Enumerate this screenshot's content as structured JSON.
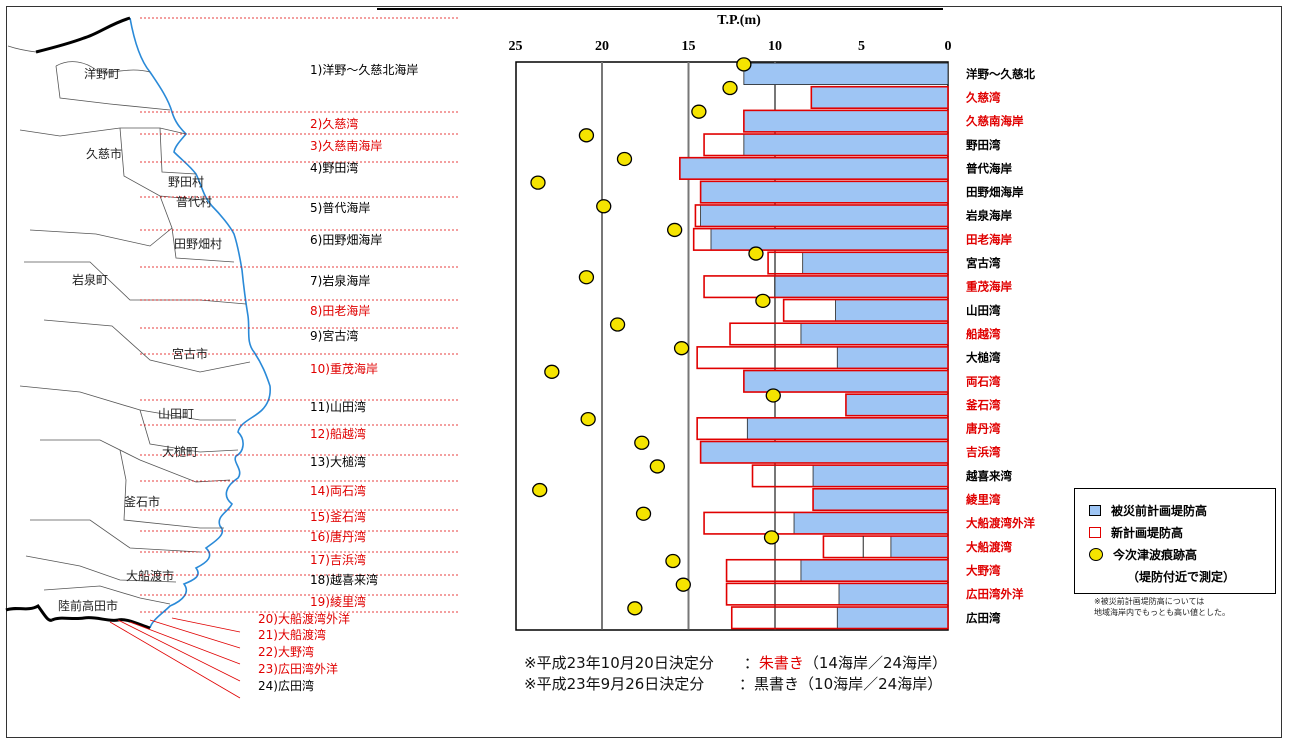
{
  "chart_data": {
    "type": "bar",
    "orientation": "horizontal",
    "xlabel": "T.P.(m)",
    "xlim": [
      25,
      0
    ],
    "xticks": [
      "25",
      "20",
      "15",
      "10",
      "5",
      "0"
    ],
    "grid_lines_at": [
      20,
      15,
      10
    ],
    "categories": [
      "洋野～久慈北",
      "久慈湾",
      "久慈南海岸",
      "野田湾",
      "普代海岸",
      "田野畑海岸",
      "岩泉海岸",
      "田老海岸",
      "宮古湾",
      "重茂海岸",
      "山田湾",
      "船越湾",
      "大槌湾",
      "両石湾",
      "釜石湾",
      "唐丹湾",
      "吉浜湾",
      "越喜来湾",
      "綾里湾",
      "大船渡湾外洋",
      "大船渡湾",
      "大野湾",
      "広田湾外洋",
      "広田湾"
    ],
    "category_colors": [
      "#000",
      "#e00000",
      "#e00000",
      "#000",
      "#000",
      "#000",
      "#000",
      "#e00000",
      "#000",
      "#e00000",
      "#000",
      "#e00000",
      "#000",
      "#e00000",
      "#e00000",
      "#e00000",
      "#e00000",
      "#000",
      "#e00000",
      "#e00000",
      "#e00000",
      "#e00000",
      "#e00000",
      "#000"
    ],
    "series": [
      {
        "name": "被災前計画堤防高",
        "values": [
          11.8,
          7.9,
          11.8,
          11.8,
          15.5,
          14.3,
          14.3,
          13.7,
          8.4,
          10.0,
          6.5,
          8.5,
          6.4,
          11.8,
          5.9,
          11.6,
          14.3,
          7.8,
          7.8,
          8.9,
          3.3,
          8.5,
          6.3,
          6.4
        ]
      },
      {
        "name": "新計画堤防高",
        "values": [
          0,
          7.9,
          11.8,
          14.1,
          15.5,
          14.3,
          14.6,
          14.7,
          10.4,
          14.1,
          9.5,
          12.6,
          14.5,
          11.8,
          5.9,
          14.5,
          14.3,
          11.3,
          7.8,
          14.1,
          7.2,
          12.8,
          12.8,
          12.5
        ]
      },
      {
        "name": "今次津波痕跡高",
        "values": [
          11.8,
          12.6,
          14.4,
          20.9,
          18.7,
          23.7,
          19.9,
          15.8,
          11.1,
          20.9,
          10.7,
          19.1,
          15.4,
          22.9,
          10.1,
          20.8,
          17.7,
          16.8,
          23.6,
          17.6,
          10.2,
          15.9,
          15.3,
          18.1
        ]
      }
    ],
    "special_bars": [
      {
        "category": "大船渡湾",
        "extra_outline_at": 4.9
      }
    ]
  },
  "legend": {
    "planned_before": "被災前計画堤防高",
    "planned_new": "新計画堤防高",
    "tsunami": "今次津波痕跡高",
    "tsunami_sub": "（堤防付近で測定）",
    "note_line1": "※被災前計画堤防高については",
    "note_line2": "地域海岸内でもっとも高い値とした。"
  },
  "notes": {
    "line1_prefix": "※平成23年10月20日決定分　　：",
    "line1_red": "朱書き",
    "line1_suffix": "（14海岸／24海岸）",
    "line2": "※平成23年9月26日決定分　　 ：黒書き（10海岸／24海岸）"
  },
  "map": {
    "towns": [
      "洋野町",
      "久慈市",
      "野田村",
      "普代村",
      "田野畑村",
      "岩泉町",
      "宮古市",
      "山田町",
      "大槌町",
      "釜石市",
      "大船渡市",
      "陸前高田市"
    ],
    "coasts": [
      {
        "label": "1)洋野～久慈北海岸",
        "color": "#000"
      },
      {
        "label": "2)久慈湾",
        "color": "#e00000"
      },
      {
        "label": "3)久慈南海岸",
        "color": "#e00000"
      },
      {
        "label": "4)野田湾",
        "color": "#000"
      },
      {
        "label": "5)普代海岸",
        "color": "#000"
      },
      {
        "label": "6)田野畑海岸",
        "color": "#000"
      },
      {
        "label": "7)岩泉海岸",
        "color": "#000"
      },
      {
        "label": "8)田老海岸",
        "color": "#e00000"
      },
      {
        "label": "9)宮古湾",
        "color": "#000"
      },
      {
        "label": "10)重茂海岸",
        "color": "#e00000"
      },
      {
        "label": "11)山田湾",
        "color": "#000"
      },
      {
        "label": "12)船越湾",
        "color": "#e00000"
      },
      {
        "label": "13)大槌湾",
        "color": "#000"
      },
      {
        "label": "14)両石湾",
        "color": "#e00000"
      },
      {
        "label": "15)釜石湾",
        "color": "#e00000"
      },
      {
        "label": "16)唐丹湾",
        "color": "#e00000"
      },
      {
        "label": "17)吉浜湾",
        "color": "#e00000"
      },
      {
        "label": "18)越喜来湾",
        "color": "#000"
      },
      {
        "label": "19)綾里湾",
        "color": "#e00000"
      },
      {
        "label": "20)大船渡湾外洋",
        "color": "#e00000"
      },
      {
        "label": "21)大船渡湾",
        "color": "#e00000"
      },
      {
        "label": "22)大野湾",
        "color": "#e00000"
      },
      {
        "label": "23)広田湾外洋",
        "color": "#e00000"
      },
      {
        "label": "24)広田湾",
        "color": "#000"
      }
    ]
  },
  "colors": {
    "before": "#9ec5f4",
    "new_outline": "#e00000",
    "tsunami_fill": "#f5e400",
    "red": "#e00000"
  }
}
